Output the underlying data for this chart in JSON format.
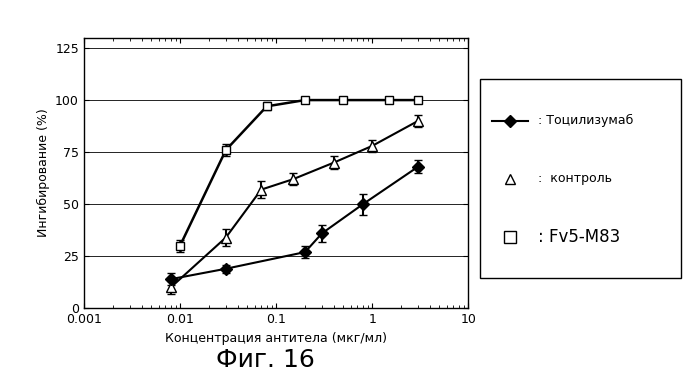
{
  "title": "Фиг. 16",
  "xlabel": "Концентрация антитела (мкг/мл)",
  "ylabel": "Ингибирование (%)",
  "xlim": [
    0.001,
    10
  ],
  "ylim": [
    0,
    130
  ],
  "yticks": [
    0,
    25,
    50,
    75,
    100,
    125
  ],
  "background": "#ffffff",
  "tocilizumab_x": [
    0.008,
    0.03,
    0.2,
    0.3,
    0.8,
    3.0
  ],
  "tocilizumab_y": [
    14,
    19,
    27,
    36,
    50,
    68
  ],
  "tocilizumab_yerr": [
    3,
    2,
    3,
    4,
    5,
    3
  ],
  "control_x": [
    0.008,
    0.03,
    0.07,
    0.15,
    0.4,
    1.0,
    3.0
  ],
  "control_y": [
    10,
    34,
    57,
    62,
    70,
    78,
    90
  ],
  "control_yerr": [
    3,
    4,
    4,
    3,
    3,
    3,
    3
  ],
  "fv5m83_x": [
    0.01,
    0.03,
    0.08,
    0.2,
    0.5,
    1.5,
    3.0
  ],
  "fv5m83_y": [
    30,
    76,
    97,
    100,
    100,
    100,
    100
  ],
  "fv5m83_yerr": [
    3,
    3,
    2,
    1,
    1,
    1,
    1
  ],
  "legend_label_tocilizumab": ": Тоцилизумаб",
  "legend_label_control": ":  контроль",
  "legend_label_fv5": ": Fv5-М83",
  "line_color": "#000000",
  "text_color": "#000000"
}
